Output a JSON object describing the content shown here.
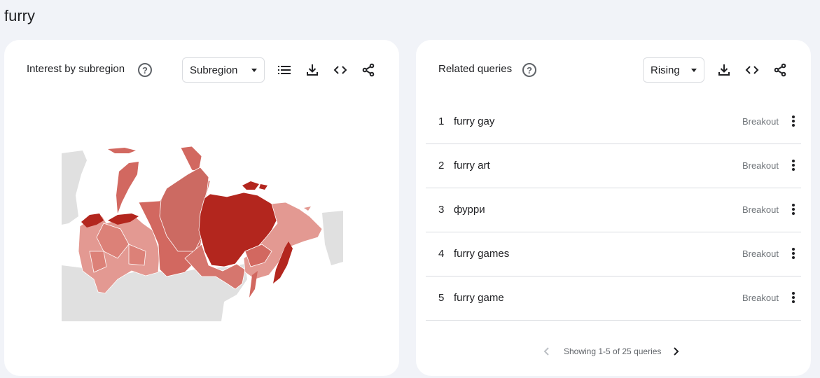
{
  "search_term": "furry",
  "left_card": {
    "title": "Interest by subregion",
    "help_icon": "help-circle-icon",
    "dropdown_value": "Subregion",
    "tools": [
      "list-icon",
      "download-icon",
      "embed-code-icon",
      "share-icon"
    ]
  },
  "map": {
    "region": "Russia",
    "colors": {
      "highest": "#b3261e",
      "mid": "#d26860",
      "low": "#e39992",
      "no_data": "#e0e0e0",
      "borders": "#ffffff"
    }
  },
  "right_card": {
    "title": "Related queries",
    "help_icon": "help-circle-icon",
    "dropdown_value": "Rising",
    "tools": [
      "download-icon",
      "embed-code-icon",
      "share-icon"
    ],
    "queries": [
      {
        "rank": "1",
        "query": "furry gay",
        "value": "Breakout"
      },
      {
        "rank": "2",
        "query": "furry art",
        "value": "Breakout"
      },
      {
        "rank": "3",
        "query": "фурри",
        "value": "Breakout"
      },
      {
        "rank": "4",
        "query": "furry games",
        "value": "Breakout"
      },
      {
        "rank": "5",
        "query": "furry game",
        "value": "Breakout"
      }
    ],
    "pagination": "Showing 1-5 of 25 queries"
  }
}
